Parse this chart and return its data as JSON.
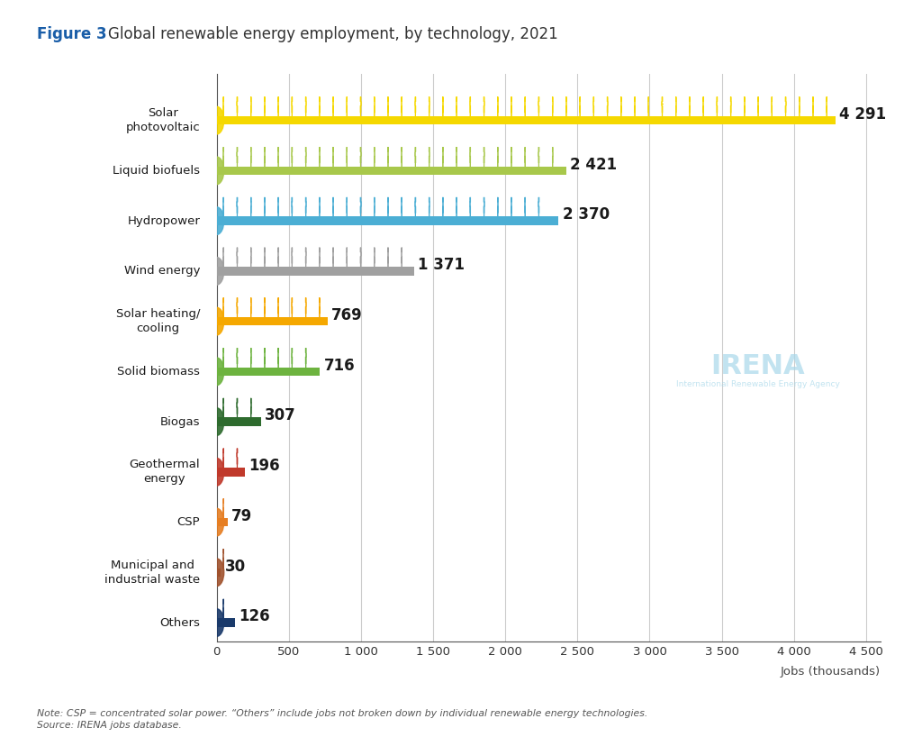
{
  "title_bold": "Figure 3",
  "title_normal": "  Global renewable energy employment, by technology, 2021",
  "categories": [
    "Solar\nphotovoltaic",
    "Liquid biofuels",
    "Hydropower",
    "Wind energy",
    "Solar heating/\ncooling",
    "Solid biomass",
    "Biogas",
    "Geothermal\nenergy",
    "CSP",
    "Municipal and\nindustrial waste",
    "Others"
  ],
  "values": [
    4291,
    2421,
    2370,
    1371,
    769,
    716,
    307,
    196,
    79,
    30,
    126
  ],
  "bar_colors": [
    "#F5D800",
    "#A8C84B",
    "#4BAED4",
    "#A0A0A0",
    "#F5A800",
    "#6DB33F",
    "#2E6B2E",
    "#C0392B",
    "#E67E22",
    "#A0522D",
    "#1A3A6B"
  ],
  "xlabel": "Jobs (thousands)",
  "xlim": [
    0,
    4600
  ],
  "xticks": [
    0,
    500,
    1000,
    1500,
    2000,
    2500,
    3000,
    3500,
    4000,
    4500
  ],
  "xtick_labels": [
    "0",
    "500",
    "1 000",
    "1 500",
    "2 000",
    "2 500",
    "3 000",
    "3 500",
    "4 000",
    "4 500"
  ],
  "note_line1": "Note: CSP = concentrated solar power. “Others” include jobs not broken down by individual renewable energy technologies.",
  "note_line2": "Source: IRENA jobs database.",
  "background_color": "#FFFFFF",
  "value_labels": [
    "4 291",
    "2 421",
    "2 370",
    "1 371",
    "769",
    "716",
    "307",
    "196",
    "79",
    "30",
    "126"
  ]
}
